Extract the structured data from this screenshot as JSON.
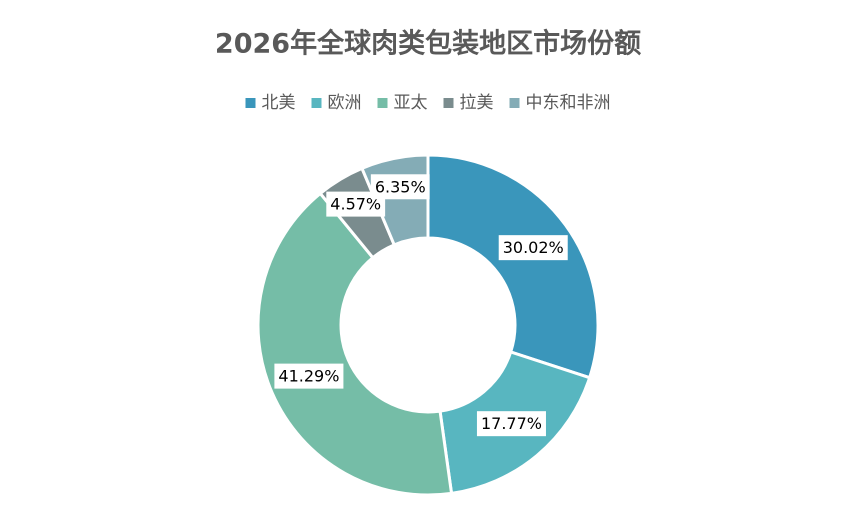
{
  "chart_data": {
    "type": "donut",
    "title": "2026年全球肉类包装地区市场份额",
    "categories": [
      "北美",
      "欧洲",
      "亚太",
      "拉美",
      "中东和非洲"
    ],
    "values": [
      30.02,
      17.77,
      41.29,
      4.57,
      6.35
    ],
    "value_labels": [
      "30.02%",
      "17.77%",
      "41.29%",
      "4.57%",
      "6.35%"
    ],
    "colors": [
      "#3a96bb",
      "#58b6c0",
      "#75bda7",
      "#7a8c8e",
      "#84acb6"
    ],
    "legend": "top"
  }
}
